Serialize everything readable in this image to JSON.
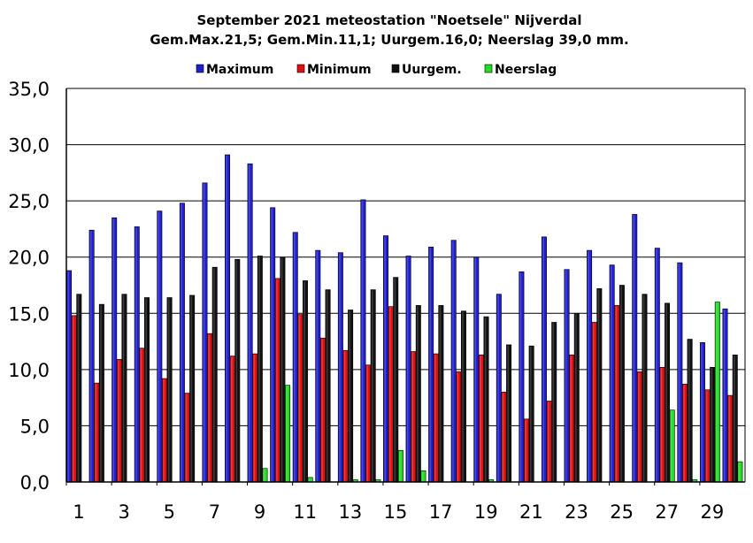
{
  "chart_data": {
    "type": "bar",
    "title": "September 2021 meteostation \"Noetsele\" Nijverdal",
    "subtitle": "Gem.Max.21,5; Gem.Min.11,1; Uurgem.16,0;  Neerslag 39,0 mm.",
    "xlabel": "",
    "ylabel": "",
    "ylim": [
      0,
      35
    ],
    "yticks": [
      "0,0",
      "5,0",
      "10,0",
      "15,0",
      "20,0",
      "25,0",
      "30,0",
      "35,0"
    ],
    "xtick_labels": [
      "1",
      "3",
      "5",
      "7",
      "9",
      "11",
      "13",
      "15",
      "17",
      "19",
      "21",
      "23",
      "25",
      "27",
      "29"
    ],
    "categories": [
      1,
      2,
      3,
      4,
      5,
      6,
      7,
      8,
      9,
      10,
      11,
      12,
      13,
      14,
      15,
      16,
      17,
      18,
      19,
      20,
      21,
      22,
      23,
      24,
      25,
      26,
      27,
      28,
      29,
      30
    ],
    "grid": true,
    "legend_position": "top",
    "series": [
      {
        "name": "Maximum",
        "color": "#1f1fd0",
        "values": [
          18.8,
          22.4,
          23.5,
          22.7,
          24.1,
          24.8,
          26.6,
          29.1,
          28.3,
          24.4,
          22.2,
          20.6,
          20.4,
          25.1,
          21.9,
          20.1,
          20.9,
          21.5,
          20.0,
          16.7,
          18.7,
          21.8,
          18.9,
          20.6,
          19.3,
          23.8,
          20.8,
          19.5,
          12.4,
          15.4
        ]
      },
      {
        "name": "Minimum",
        "color": "#e01010",
        "values": [
          14.8,
          8.8,
          10.9,
          11.9,
          9.2,
          7.9,
          13.2,
          11.2,
          11.4,
          18.1,
          14.9,
          12.8,
          11.7,
          10.4,
          15.6,
          11.6,
          11.4,
          9.8,
          11.3,
          8.0,
          5.6,
          7.2,
          11.3,
          14.2,
          15.7,
          9.8,
          10.2,
          8.7,
          8.2,
          7.7
        ]
      },
      {
        "name": "Uurgem.",
        "color": "#111111",
        "values": [
          16.7,
          15.8,
          16.7,
          16.4,
          16.4,
          16.6,
          19.1,
          19.8,
          20.1,
          20.0,
          17.9,
          17.1,
          15.3,
          17.1,
          18.2,
          15.7,
          15.7,
          15.2,
          14.7,
          12.2,
          12.1,
          14.2,
          15.0,
          17.2,
          17.5,
          16.7,
          15.9,
          12.7,
          10.2,
          11.3
        ]
      },
      {
        "name": "Neerslag",
        "color": "#22dd22",
        "values": [
          0.0,
          0.0,
          0.0,
          0.0,
          0.0,
          0.0,
          0.0,
          0.0,
          1.2,
          8.6,
          0.4,
          0.0,
          0.2,
          0.2,
          2.8,
          1.0,
          0.0,
          0.0,
          0.2,
          0.0,
          0.0,
          0.0,
          0.0,
          0.0,
          0.0,
          0.0,
          6.4,
          0.2,
          16.0,
          1.8
        ]
      }
    ]
  }
}
